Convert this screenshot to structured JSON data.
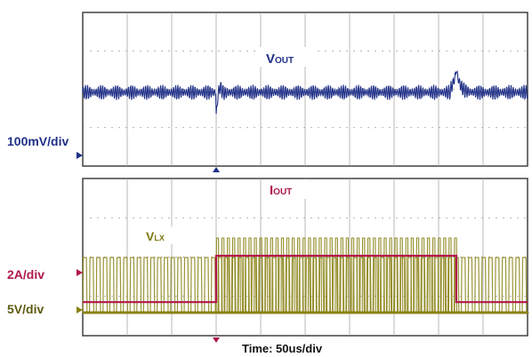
{
  "chart_data": {
    "type": "line",
    "time_scale_label": "Time: 50us/div",
    "x_divisions": 10,
    "x_unit": "us",
    "us_per_div": 50,
    "load_step_up_us": 150,
    "load_step_down_us": 420,
    "panels": [
      {
        "id": "top",
        "series": [
          {
            "name": "VOUT",
            "label_main": "V",
            "label_sub": "OUT",
            "scale_label": "100mV/div",
            "color": "#1f2f86",
            "ripple_mv_pp": 40,
            "transients": [
              {
                "t_us": 150,
                "undershoot_mv": -60,
                "overshoot_mv": 20
              },
              {
                "t_us": 420,
                "overshoot_mv": 60,
                "undershoot_mv": -20
              }
            ]
          }
        ]
      },
      {
        "id": "bottom",
        "series": [
          {
            "name": "IOUT",
            "label_main": "I",
            "label_sub": "OUT",
            "scale_label": "2A/div",
            "color": "#b0184c",
            "levels_a": [
              {
                "from_us": 0,
                "to_us": 150,
                "value": 0.4
              },
              {
                "from_us": 150,
                "to_us": 420,
                "value": 4.0
              },
              {
                "from_us": 420,
                "to_us": 500,
                "value": 0.4
              }
            ]
          },
          {
            "name": "VLX",
            "label_main": "V",
            "label_sub": "LX",
            "scale_label": "5V/div",
            "color": "#8a8214",
            "high_v": 5,
            "low_v": 0
          }
        ]
      }
    ]
  }
}
